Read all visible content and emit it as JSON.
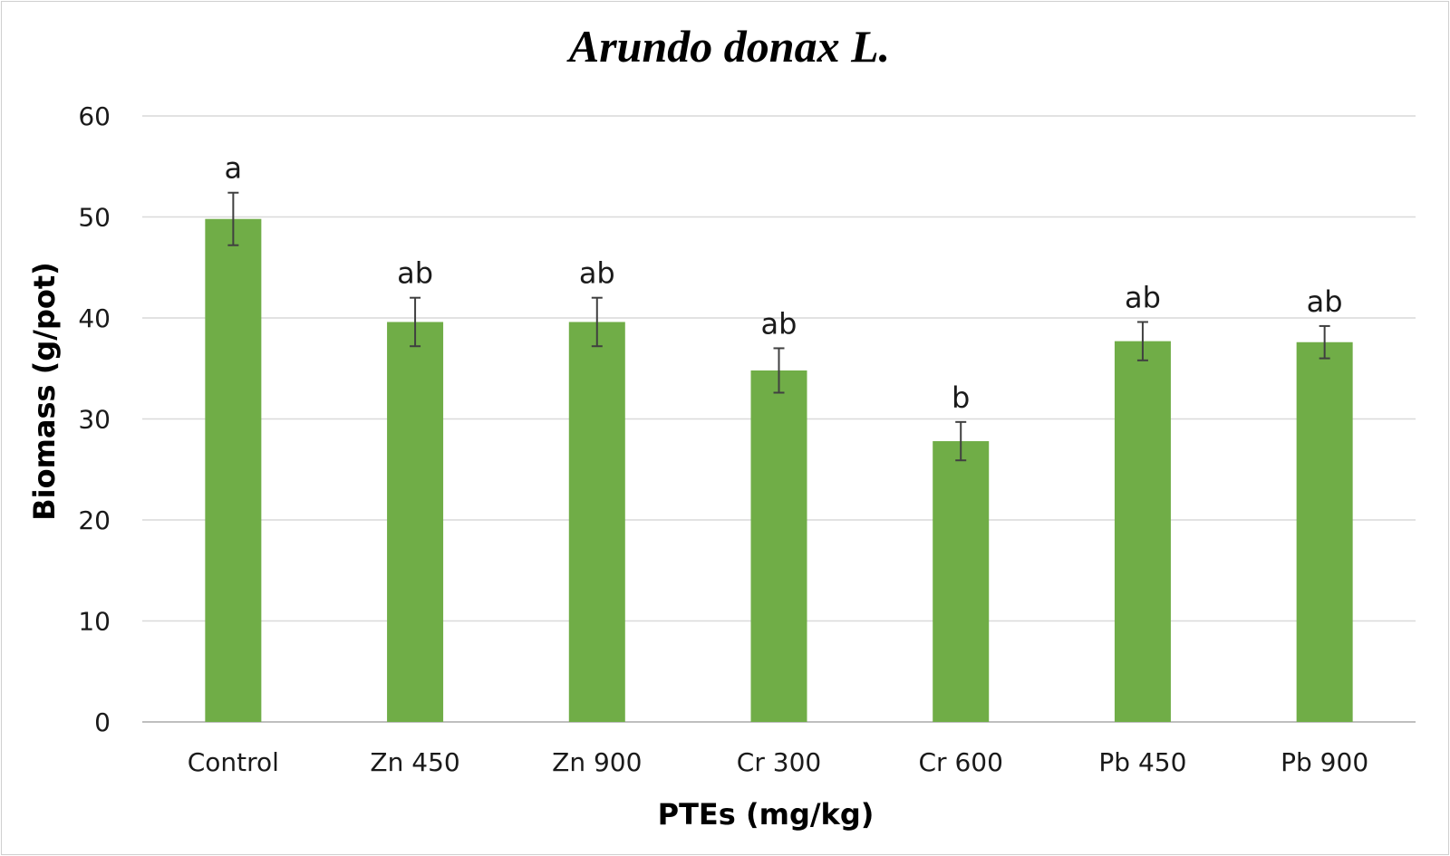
{
  "chart_data": {
    "type": "bar",
    "title": "Arundo donax L.",
    "xlabel": "PTEs (mg/kg)",
    "ylabel": "Biomass (g/pot)",
    "ylim": [
      0,
      60
    ],
    "yticks": [
      0,
      10,
      20,
      30,
      40,
      50,
      60
    ],
    "grid": true,
    "legend": "none",
    "categories": [
      "Control",
      "Zn 450",
      "Zn 900",
      "Cr 300",
      "Cr 600",
      "Pb 450",
      "Pb 900"
    ],
    "values": [
      49.8,
      39.6,
      39.6,
      34.8,
      27.8,
      37.7,
      37.6
    ],
    "errors": [
      2.6,
      2.4,
      2.4,
      2.2,
      1.9,
      1.9,
      1.6
    ],
    "significance_letters": [
      "a",
      "ab",
      "ab",
      "ab",
      "b",
      "ab",
      "ab"
    ],
    "bar_color": "#70ad47"
  }
}
